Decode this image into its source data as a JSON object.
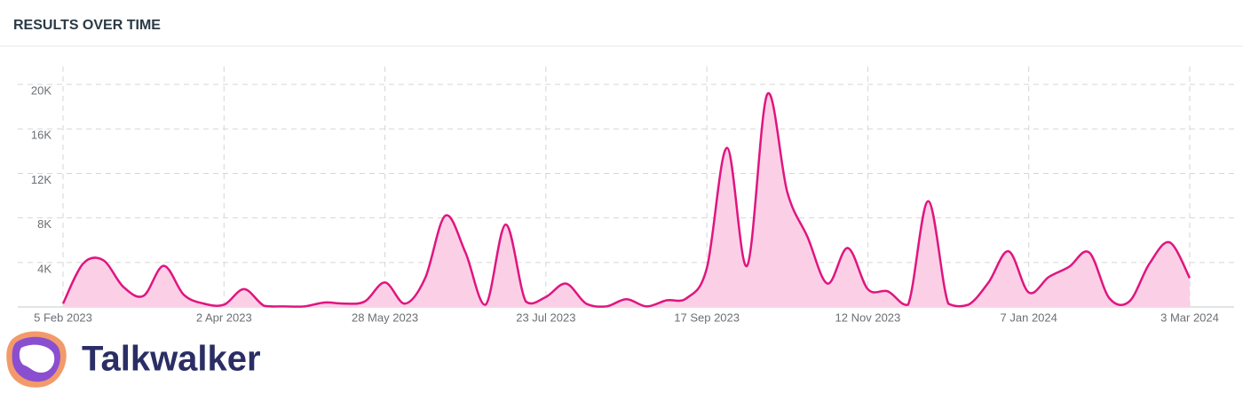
{
  "header": {
    "title": "RESULTS OVER TIME"
  },
  "chart_data": {
    "type": "area",
    "categories": [
      "5 Feb 2023",
      null,
      null,
      null,
      null,
      null,
      null,
      null,
      "2 Apr 2023",
      null,
      null,
      null,
      null,
      null,
      null,
      null,
      "28 May 2023",
      null,
      null,
      null,
      null,
      null,
      null,
      null,
      "23 Jul 2023",
      null,
      null,
      null,
      null,
      null,
      null,
      null,
      "17 Sep 2023",
      null,
      null,
      null,
      null,
      null,
      null,
      null,
      "12 Nov 2023",
      null,
      null,
      null,
      null,
      null,
      null,
      null,
      "7 Jan 2024",
      null,
      null,
      null,
      null,
      null,
      null,
      null,
      "3 Mar 2024"
    ],
    "values": [
      300,
      3900,
      4200,
      1800,
      1000,
      3700,
      1100,
      300,
      200,
      1600,
      100,
      50,
      50,
      400,
      300,
      500,
      2200,
      300,
      2600,
      8200,
      4900,
      200,
      7400,
      500,
      900,
      2100,
      300,
      50,
      700,
      50,
      600,
      800,
      3500,
      14300,
      3700,
      19100,
      10300,
      6300,
      2100,
      5300,
      1600,
      1400,
      200,
      9500,
      300,
      200,
      2200,
      5000,
      1300,
      2700,
      3600,
      4900,
      800,
      500,
      3900,
      5800,
      2600
    ],
    "color": "#e0157f",
    "fill": "#fbd0e7",
    "ylim": [
      0,
      21600
    ],
    "yticks": [
      {
        "value": 4000,
        "label": "4K"
      },
      {
        "value": 8000,
        "label": "8K"
      },
      {
        "value": 12000,
        "label": "12K"
      },
      {
        "value": 16000,
        "label": "16K"
      },
      {
        "value": 20000,
        "label": "20K"
      }
    ],
    "grid": true
  },
  "logo": {
    "text": "Talkwalker"
  }
}
